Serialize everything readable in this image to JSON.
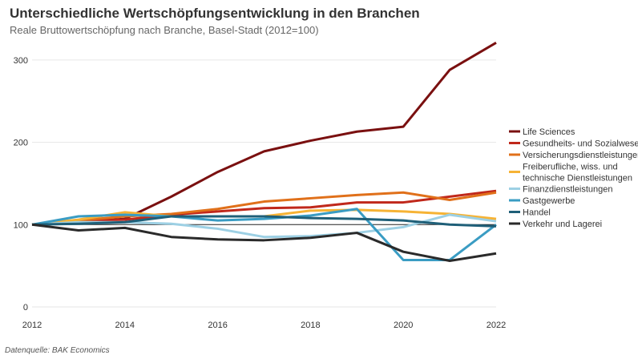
{
  "title": "Unterschiedliche Wertschöpfungsentwicklung in den Branchen",
  "subtitle": "Reale Bruttowertschöpfung nach Branche, Basel-Stadt (2012=100)",
  "source": "Datenquelle: BAK Economics",
  "chart_data": {
    "type": "line",
    "title": "Unterschiedliche Wertschöpfungsentwicklung in den Branchen",
    "subtitle": "Reale Bruttowertschöpfung nach Branche, Basel-Stadt (2012=100)",
    "x": [
      2012,
      2013,
      2014,
      2015,
      2016,
      2017,
      2018,
      2019,
      2020,
      2021,
      2022
    ],
    "x_ticks": [
      "2012",
      "2014",
      "2016",
      "2018",
      "2020",
      "2022"
    ],
    "y_ticks": [
      "0",
      "100",
      "200",
      "300"
    ],
    "xlim": [
      2012,
      2022
    ],
    "ylim": [
      0,
      320
    ],
    "grid": "horizontal",
    "legend": "right",
    "series": [
      {
        "name": "Life Sciences",
        "color": "#7a1010",
        "values": [
          100,
          103,
          107,
          134,
          164,
          189,
          202,
          213,
          219,
          288,
          321
        ]
      },
      {
        "name": "Gesundheits- und Sozialwesen",
        "color": "#c0281b",
        "values": [
          100,
          104,
          106,
          112,
          116,
          120,
          121,
          127,
          127,
          134,
          141
        ]
      },
      {
        "name": "Versicherungsdienstleistungen",
        "color": "#e0701a",
        "values": [
          100,
          105,
          110,
          113,
          119,
          128,
          132,
          136,
          139,
          130,
          139
        ]
      },
      {
        "name": "Freiberufliche, wiss. und technische Dienstleistungen",
        "color": "#f6b335",
        "values": [
          100,
          106,
          115,
          110,
          110,
          110,
          117,
          118,
          116,
          113,
          107
        ]
      },
      {
        "name": "Finanzdienstleistungen",
        "color": "#9dd0e4",
        "values": [
          100,
          103,
          103,
          101,
          95,
          85,
          86,
          90,
          97,
          112,
          104
        ]
      },
      {
        "name": "Gastgewerbe",
        "color": "#3a9cc3",
        "values": [
          100,
          110,
          112,
          110,
          105,
          107,
          111,
          119,
          57,
          57,
          100
        ]
      },
      {
        "name": "Handel",
        "color": "#1f5f78",
        "values": [
          100,
          101,
          103,
          110,
          110,
          110,
          108,
          107,
          105,
          100,
          98
        ]
      },
      {
        "name": "Verkehr und Lagerei",
        "color": "#2a2a2a",
        "values": [
          100,
          93,
          96,
          85,
          82,
          81,
          84,
          90,
          67,
          56,
          65
        ]
      }
    ]
  }
}
